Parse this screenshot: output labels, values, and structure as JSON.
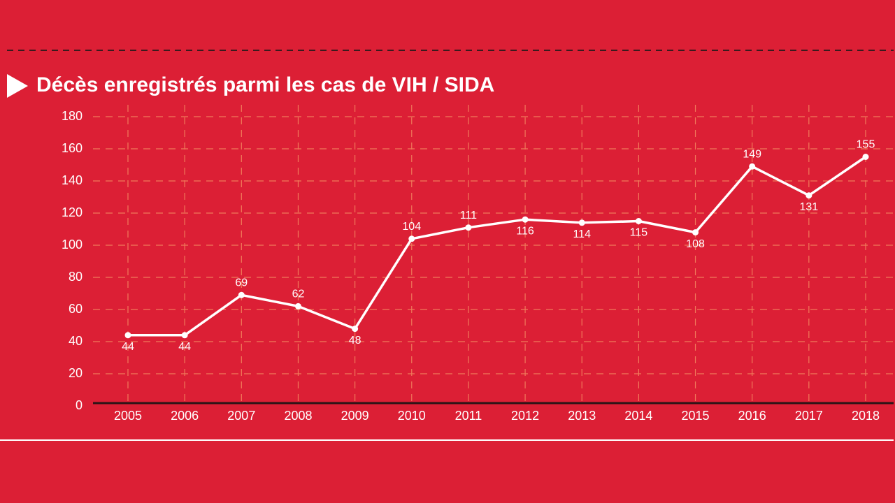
{
  "chart_data": {
    "type": "line",
    "title": "Décès enregistrés parmi les cas de VIH / SIDA",
    "categories": [
      "2005",
      "2006",
      "2007",
      "2008",
      "2009",
      "2010",
      "2011",
      "2012",
      "2013",
      "2014",
      "2015",
      "2016",
      "2017",
      "2018"
    ],
    "values": [
      44,
      44,
      69,
      62,
      48,
      104,
      111,
      116,
      114,
      115,
      108,
      149,
      131,
      155
    ],
    "color": "#ffffff",
    "ylim": [
      0,
      180
    ],
    "yticks": [
      0,
      20,
      40,
      60,
      80,
      100,
      120,
      140,
      160,
      180
    ],
    "grid": true
  }
}
